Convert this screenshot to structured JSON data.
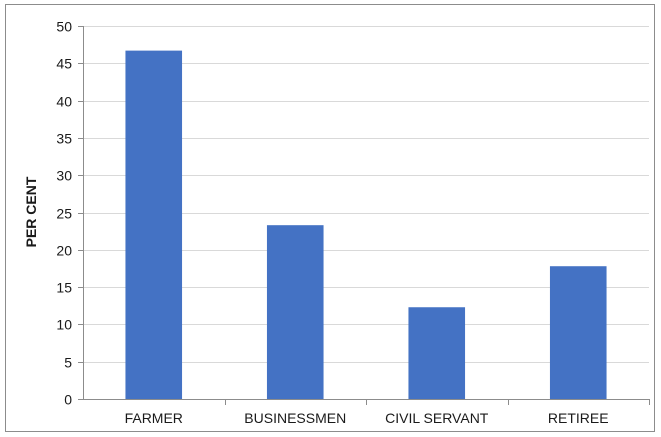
{
  "chart_data": {
    "type": "bar",
    "title": "",
    "xlabel": "",
    "ylabel": "PER CENT",
    "categories": [
      "FARMER",
      "BUSINESSMEN",
      "CIVIL SERVANT",
      "RETIREE"
    ],
    "values": [
      46.7,
      23.3,
      12.3,
      17.8
    ],
    "ylim": [
      0,
      50
    ],
    "yticks": [
      0,
      5,
      10,
      15,
      20,
      25,
      30,
      35,
      40,
      45,
      50
    ],
    "grid": true,
    "legend": "none",
    "bar_color": "#4472C4",
    "grid_color": "#d9d9d9",
    "axis_color": "#8c8c8c"
  }
}
